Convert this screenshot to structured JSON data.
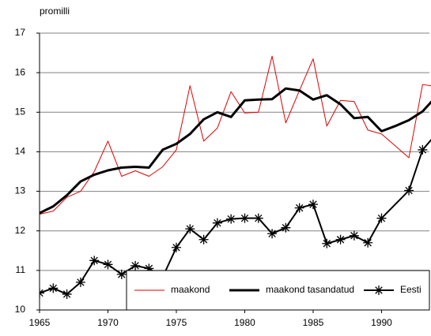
{
  "chart_data": {
    "type": "line",
    "ylabel": "promilli",
    "xlim": [
      1965,
      1993.5
    ],
    "xticks": [
      1965,
      1970,
      1975,
      1980,
      1985,
      1990
    ],
    "ylim": [
      10,
      17
    ],
    "yticks": [
      10,
      11,
      12,
      13,
      14,
      15,
      16,
      17
    ],
    "grid": true,
    "legend": "bottom-right",
    "series": [
      {
        "name": "maakond",
        "color": "#e00000",
        "width": 1,
        "marker": "none",
        "x": [
          1965,
          1966,
          1967,
          1968,
          1969,
          1970,
          1971,
          1972,
          1973,
          1974,
          1975,
          1976,
          1977,
          1978,
          1979,
          1980,
          1981,
          1982,
          1983,
          1984,
          1985,
          1986,
          1987,
          1988,
          1989,
          1990,
          1991,
          1992,
          1993,
          1994
        ],
        "values": [
          12.42,
          12.5,
          12.85,
          13.0,
          13.5,
          14.27,
          13.38,
          13.52,
          13.38,
          13.62,
          14.05,
          15.67,
          14.27,
          14.6,
          15.52,
          14.98,
          15.0,
          16.42,
          14.73,
          15.55,
          16.35,
          14.65,
          15.3,
          15.27,
          14.55,
          14.45,
          14.15,
          13.85,
          15.7,
          15.65
        ]
      },
      {
        "name": "maakond tasandatud",
        "color": "#000000",
        "width": 3,
        "marker": "none",
        "x": [
          1965,
          1966,
          1967,
          1968,
          1969,
          1970,
          1971,
          1972,
          1973,
          1974,
          1975,
          1976,
          1977,
          1978,
          1979,
          1980,
          1981,
          1982,
          1983,
          1984,
          1985,
          1986,
          1987,
          1988,
          1989,
          1990,
          1991,
          1992,
          1993,
          1994
        ],
        "values": [
          12.45,
          12.62,
          12.9,
          13.25,
          13.42,
          13.53,
          13.6,
          13.62,
          13.6,
          14.05,
          14.2,
          14.45,
          14.82,
          15.0,
          14.88,
          15.3,
          15.32,
          15.33,
          15.6,
          15.55,
          15.32,
          15.43,
          15.2,
          14.85,
          14.88,
          14.52,
          14.65,
          14.8,
          15.02,
          15.4
        ]
      },
      {
        "name": "Eesti",
        "color": "#000000",
        "width": 2,
        "marker": "star",
        "x": [
          1965,
          1966,
          1967,
          1968,
          1969,
          1970,
          1971,
          1972,
          1973,
          1974,
          1975,
          1976,
          1977,
          1978,
          1979,
          1980,
          1981,
          1982,
          1983,
          1984,
          1985,
          1986,
          1987,
          1988,
          1989,
          1990,
          1992,
          1993,
          1994
        ],
        "values": [
          10.43,
          10.55,
          10.4,
          10.7,
          11.25,
          11.15,
          10.9,
          11.12,
          11.05,
          10.83,
          11.58,
          12.05,
          11.78,
          12.2,
          12.3,
          12.32,
          12.32,
          11.93,
          12.08,
          12.58,
          12.67,
          11.68,
          11.78,
          11.88,
          11.7,
          12.32,
          13.02,
          14.05,
          14.45
        ]
      }
    ]
  }
}
